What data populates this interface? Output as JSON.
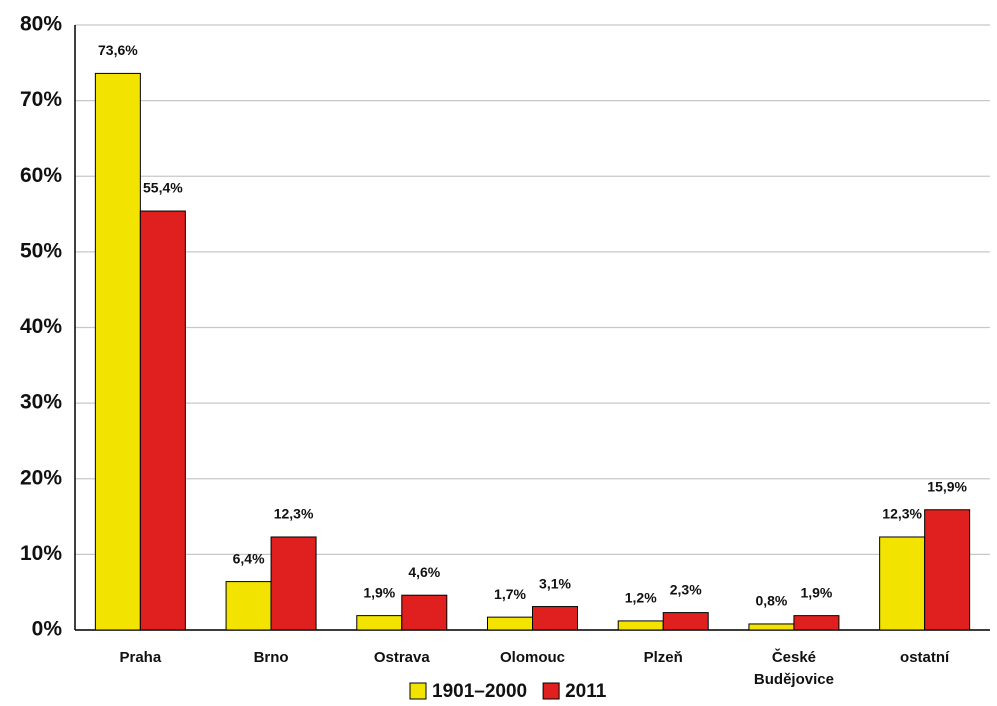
{
  "chart_data": {
    "type": "bar",
    "categories": [
      "Praha",
      "Brno",
      "Ostrava",
      "Olomouc",
      "Plzeň",
      "České Budějovice",
      "ostatní"
    ],
    "series": [
      {
        "name": "1901–2000",
        "color": "#f2e400",
        "values": [
          73.6,
          6.4,
          1.9,
          1.7,
          1.2,
          0.8,
          12.3
        ],
        "value_labels": [
          "73,6%",
          "6,4%",
          "1,9%",
          "1,7%",
          "1,2%",
          "0,8%",
          "12,3%"
        ]
      },
      {
        "name": "2011",
        "color": "#e0201e",
        "values": [
          55.4,
          12.3,
          4.6,
          3.1,
          2.3,
          1.9,
          15.9
        ],
        "value_labels": [
          "55,4%",
          "12,3%",
          "4,6%",
          "3,1%",
          "2,3%",
          "1,9%",
          "15,9%"
        ]
      }
    ],
    "ylim": [
      0,
      80
    ],
    "yticks": [
      {
        "value": 0,
        "label": "0%"
      },
      {
        "value": 10,
        "label": "10%"
      },
      {
        "value": 20,
        "label": "20%"
      },
      {
        "value": 30,
        "label": "30%"
      },
      {
        "value": 40,
        "label": "40%"
      },
      {
        "value": 50,
        "label": "50%"
      },
      {
        "value": 60,
        "label": "60%"
      },
      {
        "value": 70,
        "label": "70%"
      },
      {
        "value": 80,
        "label": "80%"
      }
    ],
    "grid": true,
    "legend": "bottom"
  }
}
